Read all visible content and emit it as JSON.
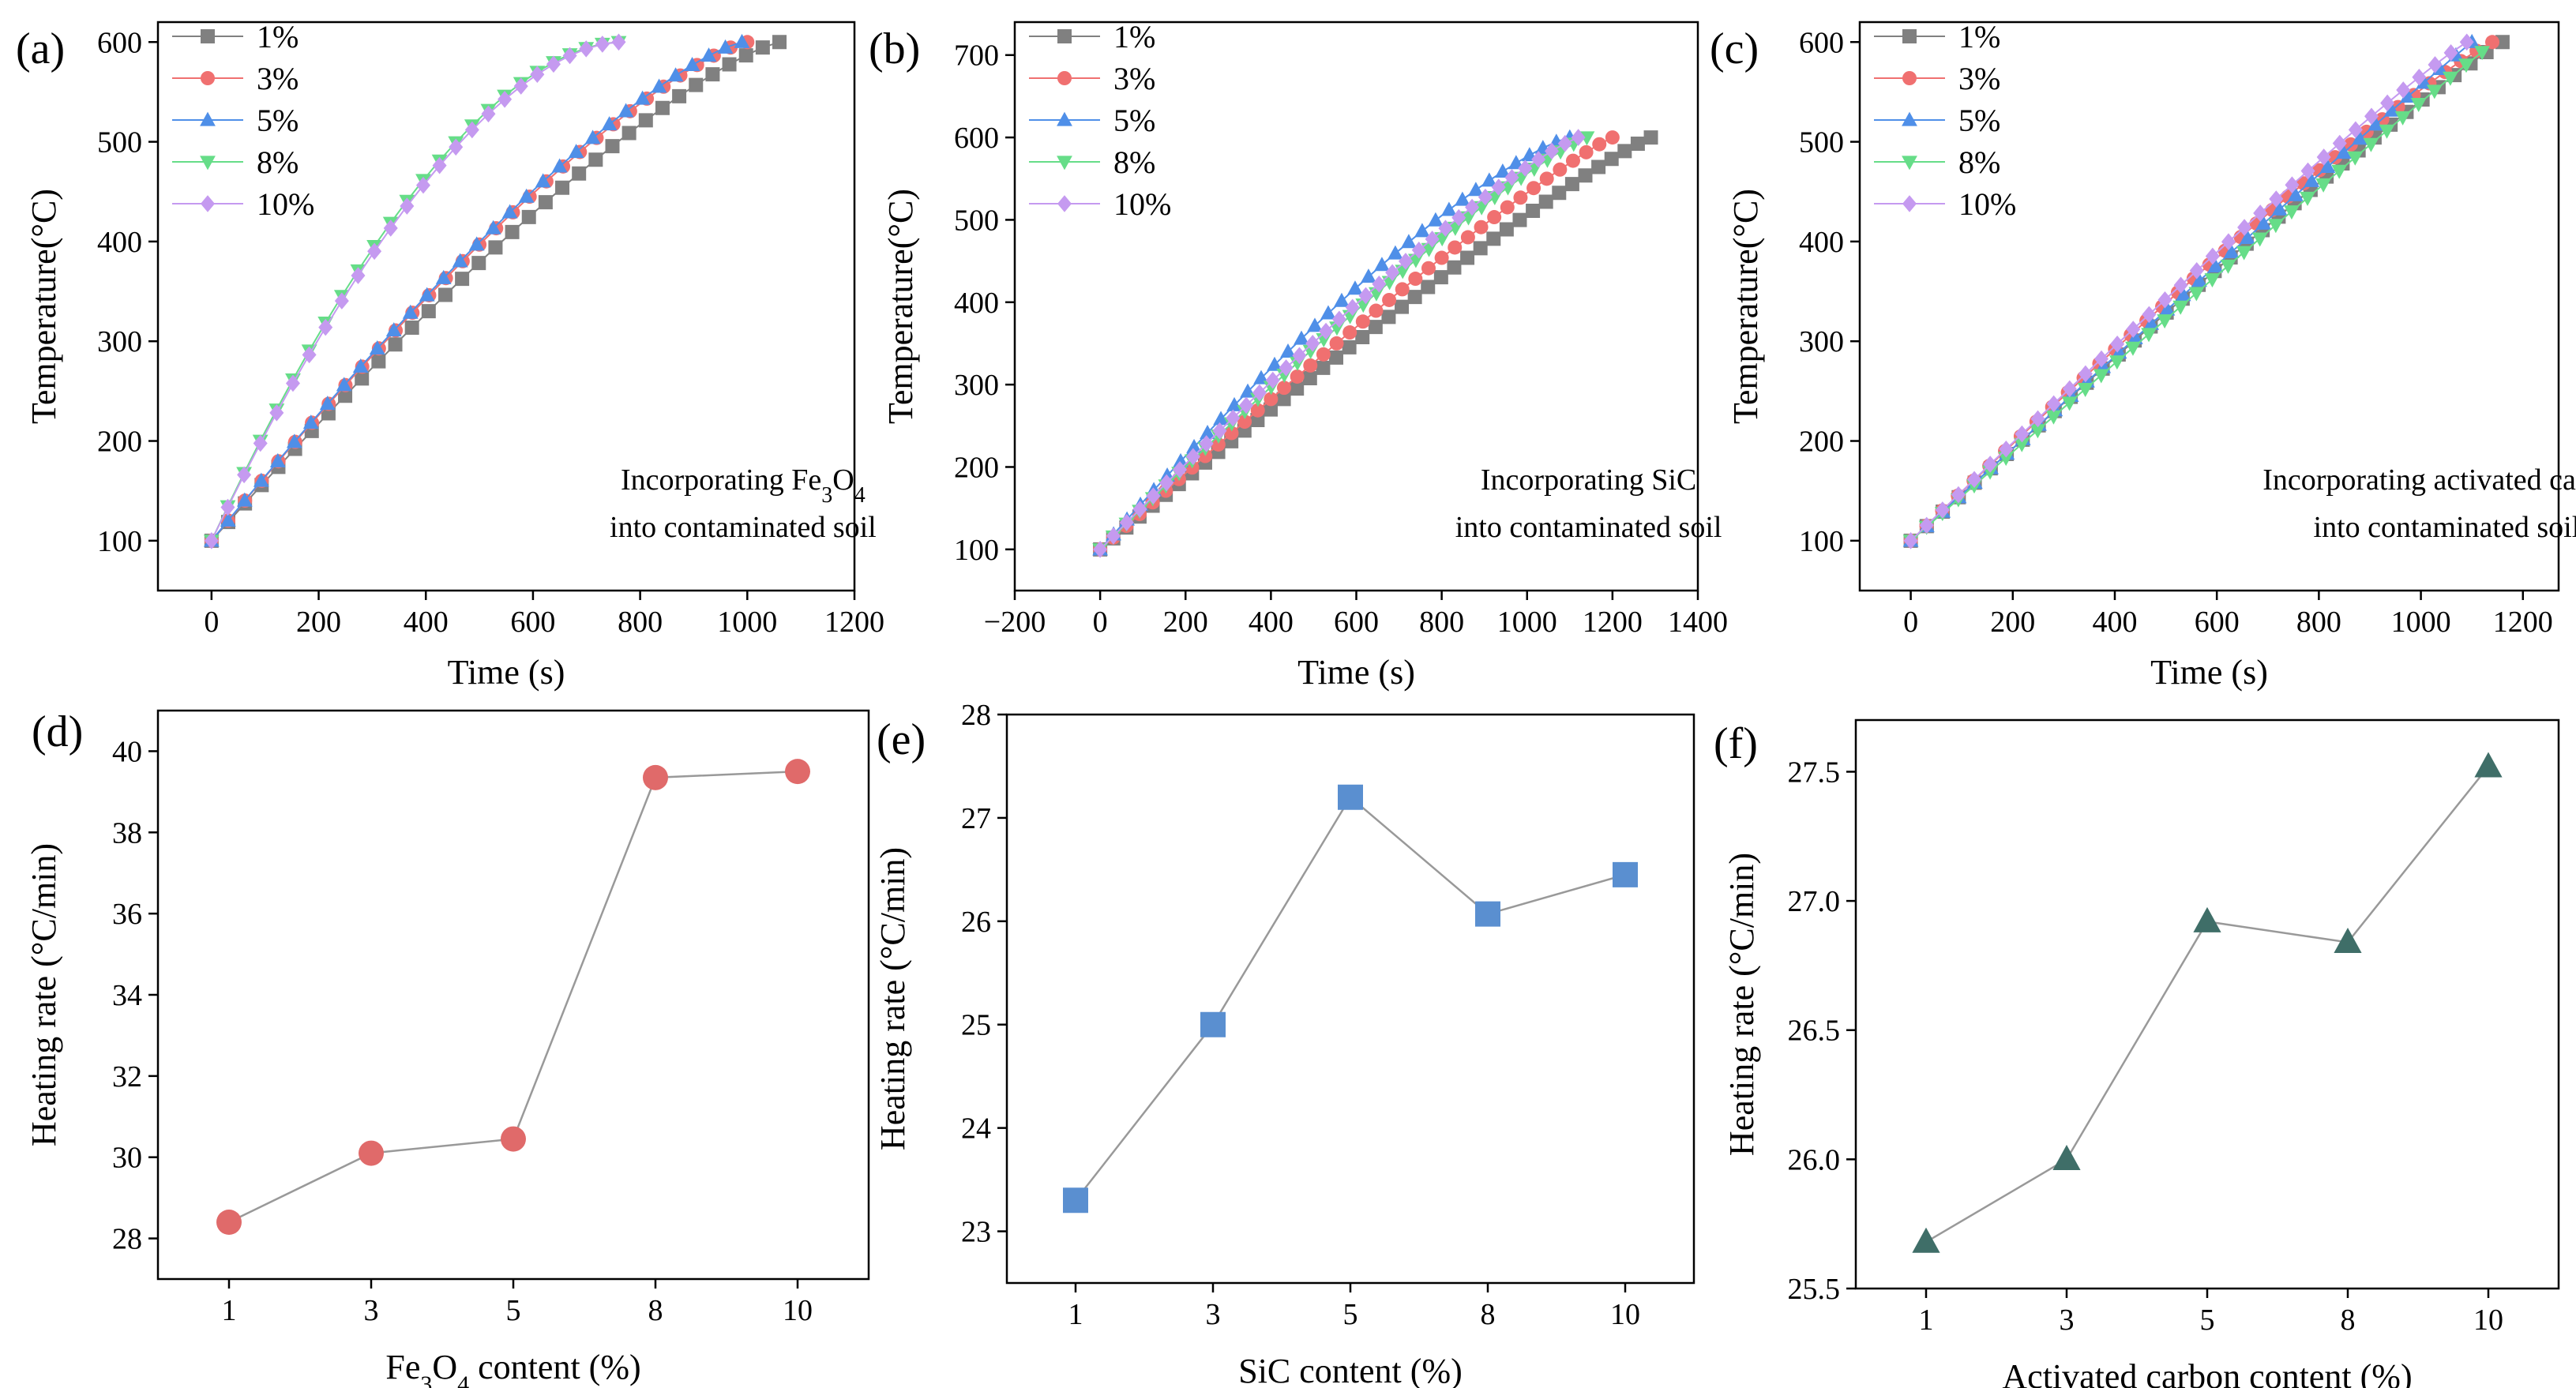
{
  "chart_data": [
    {
      "id": "a",
      "type": "line",
      "panel_label": "(a)",
      "xlabel": "Time (s)",
      "ylabel": "Temperature(°C)",
      "xlim": [
        -100,
        1200
      ],
      "ylim": [
        50,
        620
      ],
      "xticks": [
        0,
        200,
        400,
        600,
        800,
        1000,
        1200
      ],
      "yticks": [
        100,
        200,
        300,
        400,
        500,
        600
      ],
      "tick_labels_x": [
        "0",
        "200",
        "400",
        "600",
        "800",
        "1000",
        "1200"
      ],
      "tick_labels_y": [
        "100",
        "200",
        "300",
        "400",
        "500",
        "600"
      ],
      "annotation": [
        "Incorporating Fe",
        "3",
        "O",
        "4",
        "into contaminated soil"
      ],
      "legend_position": "top-left",
      "series": [
        {
          "name": "1%",
          "color": "#808080",
          "marker": "square",
          "end": 1060,
          "y_end": 600,
          "curve": 0.28
        },
        {
          "name": "3%",
          "color": "#f07070",
          "marker": "circle",
          "end": 1000,
          "y_end": 600,
          "curve": 0.3
        },
        {
          "name": "5%",
          "color": "#4f8fe8",
          "marker": "triangle-up",
          "end": 990,
          "y_end": 600,
          "curve": 0.3
        },
        {
          "name": "8%",
          "color": "#66dd88",
          "marker": "triangle-down",
          "end": 760,
          "y_end": 600,
          "curve": 0.75
        },
        {
          "name": "10%",
          "color": "#c59af0",
          "marker": "diamond",
          "end": 760,
          "y_end": 600,
          "curve": 0.7
        }
      ]
    },
    {
      "id": "b",
      "type": "line",
      "panel_label": "(b)",
      "xlabel": "Time (s)",
      "ylabel": "Temperature(°C)",
      "xlim": [
        -200,
        1400
      ],
      "ylim": [
        50,
        740
      ],
      "xticks": [
        -200,
        0,
        200,
        400,
        600,
        800,
        1000,
        1200,
        1400
      ],
      "yticks": [
        100,
        200,
        300,
        400,
        500,
        600,
        700
      ],
      "tick_labels_x": [
        "−200",
        "0",
        "200",
        "400",
        "600",
        "800",
        "1000",
        "1200",
        "1400"
      ],
      "tick_labels_y": [
        "100",
        "200",
        "300",
        "400",
        "500",
        "600",
        "700"
      ],
      "annotation": [
        "Incorporating SiC",
        "",
        "",
        "",
        "into contaminated soil"
      ],
      "legend_position": "top-left",
      "series": [
        {
          "name": "1%",
          "color": "#808080",
          "marker": "square",
          "end": 1290,
          "y_end": 600,
          "curve": 0.12
        },
        {
          "name": "3%",
          "color": "#f07070",
          "marker": "circle",
          "end": 1200,
          "y_end": 600,
          "curve": 0.12
        },
        {
          "name": "5%",
          "color": "#4f8fe8",
          "marker": "triangle-up",
          "end": 1100,
          "y_end": 600,
          "curve": 0.28
        },
        {
          "name": "8%",
          "color": "#66dd88",
          "marker": "triangle-down",
          "end": 1140,
          "y_end": 600,
          "curve": 0.16
        },
        {
          "name": "10%",
          "color": "#c59af0",
          "marker": "diamond",
          "end": 1120,
          "y_end": 600,
          "curve": 0.18
        }
      ]
    },
    {
      "id": "c",
      "type": "line",
      "panel_label": "(c)",
      "xlabel": "Time (s)",
      "ylabel": "Temperature(°C)",
      "xlim": [
        -100,
        1270
      ],
      "ylim": [
        50,
        620
      ],
      "xticks": [
        0,
        200,
        400,
        600,
        800,
        1000,
        1200
      ],
      "yticks": [
        100,
        200,
        300,
        400,
        500,
        600
      ],
      "tick_labels_x": [
        "0",
        "200",
        "400",
        "600",
        "800",
        "1000",
        "1200"
      ],
      "tick_labels_y": [
        "100",
        "200",
        "300",
        "400",
        "500",
        "600"
      ],
      "annotation": [
        "Incorporating activated carbon",
        "",
        "",
        "",
        "into contaminated soil"
      ],
      "legend_position": "top-left",
      "series": [
        {
          "name": "1%",
          "color": "#808080",
          "marker": "square",
          "end": 1160,
          "y_end": 600,
          "curve": 0.08
        },
        {
          "name": "3%",
          "color": "#f07070",
          "marker": "circle",
          "end": 1140,
          "y_end": 600,
          "curve": 0.12
        },
        {
          "name": "5%",
          "color": "#4f8fe8",
          "marker": "triangle-up",
          "end": 1100,
          "y_end": 600,
          "curve": 0.02
        },
        {
          "name": "8%",
          "color": "#66dd88",
          "marker": "triangle-down",
          "end": 1120,
          "y_end": 590,
          "curve": 0.02
        },
        {
          "name": "10%",
          "color": "#c59af0",
          "marker": "diamond",
          "end": 1090,
          "y_end": 600,
          "curve": 0.08
        }
      ]
    },
    {
      "id": "d",
      "type": "scatter",
      "panel_label": "(d)",
      "xlabel_parts": [
        "Fe",
        "3",
        "O",
        "4",
        " content (%)"
      ],
      "ylabel": "Heating rate (°C/min)",
      "categories": [
        "1",
        "3",
        "5",
        "8",
        "10"
      ],
      "values": [
        28.4,
        30.1,
        30.45,
        39.35,
        39.5
      ],
      "ylim": [
        27,
        41
      ],
      "yticks": [
        28,
        30,
        32,
        34,
        36,
        38,
        40
      ],
      "tick_labels_y": [
        "28",
        "30",
        "32",
        "34",
        "36",
        "38",
        "40"
      ],
      "marker": "circle",
      "color": "#e06a6a"
    },
    {
      "id": "e",
      "type": "scatter",
      "panel_label": "(e)",
      "xlabel_parts": [
        "SiC content (%)",
        "",
        "",
        "",
        ""
      ],
      "ylabel": "Heating rate (°C/min)",
      "categories": [
        "1",
        "3",
        "5",
        "8",
        "10"
      ],
      "values": [
        23.3,
        25.0,
        27.2,
        26.07,
        26.45
      ],
      "ylim": [
        22.5,
        28.0
      ],
      "yticks": [
        23,
        24,
        25,
        26,
        27,
        28
      ],
      "tick_labels_y": [
        "23",
        "24",
        "25",
        "26",
        "27",
        "28"
      ],
      "marker": "square",
      "color": "#5a8fd0"
    },
    {
      "id": "f",
      "type": "scatter",
      "panel_label": "(f)",
      "xlabel_parts": [
        "Activated carbon content (%)",
        "",
        "",
        "",
        ""
      ],
      "ylabel": "Heating rate (°C/min)",
      "categories": [
        "1",
        "3",
        "5",
        "8",
        "10"
      ],
      "values": [
        25.68,
        26.0,
        26.92,
        26.84,
        27.52
      ],
      "ylim": [
        25.5,
        27.7
      ],
      "yticks": [
        25.5,
        26.0,
        26.5,
        27.0,
        27.5
      ],
      "tick_labels_y": [
        "25.5",
        "26.0",
        "26.5",
        "27.0",
        "27.5"
      ],
      "marker": "triangle-up",
      "color": "#3f6e68"
    }
  ]
}
